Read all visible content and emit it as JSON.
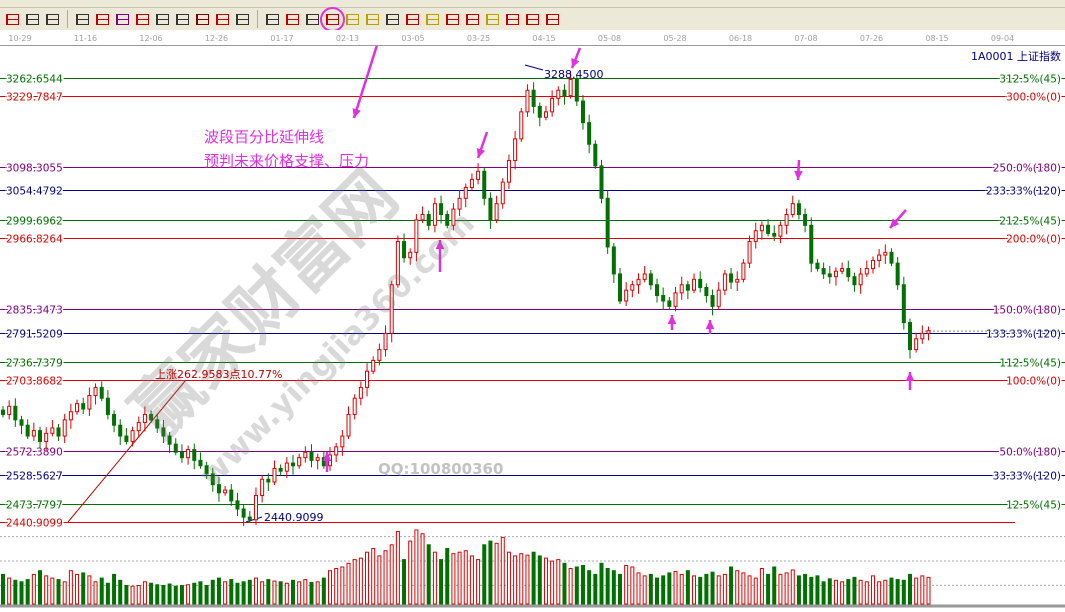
{
  "toolbar": {
    "icons": [
      {
        "name": "win-icon",
        "color": "#c00000"
      },
      {
        "name": "calendar-grid-icon",
        "color": "#333"
      },
      {
        "name": "fit-width-icon",
        "color": "#333"
      },
      {
        "sep": true
      },
      {
        "name": "rect-select-icon",
        "color": "#333"
      },
      {
        "name": "fan-lines-icon",
        "color": "#c00000"
      },
      {
        "name": "gann-box-icon",
        "color": "#800080"
      },
      {
        "name": "gann-fan-icon",
        "color": "#c00000"
      },
      {
        "name": "angle-line-icon",
        "color": "#333"
      },
      {
        "name": "zigzag-icon",
        "color": "#333"
      },
      {
        "name": "grid-icon",
        "color": "#800000"
      },
      {
        "name": "grid-red-icon",
        "color": "#c00000"
      },
      {
        "name": "parallel-lines-icon",
        "color": "#333"
      },
      {
        "sep": true
      },
      {
        "name": "ruler-icon",
        "color": "#333"
      },
      {
        "name": "percent-fan-icon",
        "color": "#c00000"
      },
      {
        "name": "percent-icon",
        "color": "#333"
      },
      {
        "name": "percent-extension-icon",
        "color": "#c00000",
        "active": true
      },
      {
        "name": "circle-target-icon",
        "color": "#b8a000"
      },
      {
        "name": "gold-line-icon",
        "color": "#b8a000"
      },
      {
        "name": "speed-line-icon",
        "color": "#333"
      },
      {
        "name": "wave-icon",
        "color": "#c00000"
      },
      {
        "name": "gold-ratio-icon",
        "color": "#b8a000"
      },
      {
        "name": "j-line-icon",
        "color": "#c00000"
      },
      {
        "name": "fib-line-icon",
        "color": "#c00000"
      },
      {
        "name": "gold-angle-icon",
        "color": "#b8a000"
      },
      {
        "name": "advance-icon",
        "color": "#c00000"
      },
      {
        "name": "win-angle-icon",
        "color": "#c00000"
      },
      {
        "name": "four-angle-icon",
        "color": "#c00000"
      }
    ]
  },
  "symbol": "1A0001  上证指数",
  "annotation": {
    "line1": "波段百分比延伸线",
    "line2": "预判未来价格支撑、压力",
    "rise": "上涨262.9583点10.77%",
    "high_label": "3288.4500",
    "low_label": "2440.9099",
    "qq": "QQ:100800360",
    "accent": "#e030e0"
  },
  "watermark": {
    "brand": "赢家财富网",
    "url": "www.yingjia360.com"
  },
  "chart_data": {
    "type": "candlestick",
    "x_ticks": [
      "10-29",
      "11-16",
      "12-06",
      "12-26",
      "01-17",
      "02-13",
      "03-05",
      "03-25",
      "04-15",
      "05-08",
      "05-28",
      "06-18",
      "07-08",
      "07-26",
      "08-15",
      "09-04"
    ],
    "ylim": [
      2440.9099,
      3262.6544
    ],
    "up_color": "#e00000",
    "down_color": "#007000",
    "levels": [
      {
        "price": "3262.6544",
        "pct": "312.5%(45)",
        "color": "#007000"
      },
      {
        "price": "3229.7847",
        "pct": "300.0%(0)",
        "color": "#e00000"
      },
      {
        "price": "3098.3055",
        "pct": "250.0%(180)",
        "color": "#800080"
      },
      {
        "price": "3054.4792",
        "pct": "233.33%(120)",
        "color": "#000080"
      },
      {
        "price": "2999.6962",
        "pct": "212.5%(45)",
        "color": "#007000"
      },
      {
        "price": "2966.8264",
        "pct": "200.0%(0)",
        "color": "#e00000"
      },
      {
        "price": "2835.3473",
        "pct": "150.0%(180)",
        "color": "#800080"
      },
      {
        "price": "2791.5209",
        "pct": "133.33%(120)",
        "color": "#000080"
      },
      {
        "price": "2736.7379",
        "pct": "112.5%(45)",
        "color": "#007000"
      },
      {
        "price": "2703.8682",
        "pct": "100.0%(0)",
        "color": "#e00000"
      },
      {
        "price": "2572.3890",
        "pct": "50.0%(180)",
        "color": "#800080"
      },
      {
        "price": "2528.5627",
        "pct": "33.33%(120)",
        "color": "#000080"
      },
      {
        "price": "2473.7797",
        "pct": "12.5%(45)",
        "color": "#007000"
      },
      {
        "price": "2440.9099",
        "pct": "",
        "color": "#e00000"
      }
    ],
    "close": [
      2640,
      2655,
      2630,
      2620,
      2600,
      2610,
      2590,
      2605,
      2615,
      2600,
      2630,
      2645,
      2660,
      2650,
      2675,
      2690,
      2670,
      2640,
      2620,
      2600,
      2590,
      2610,
      2625,
      2640,
      2630,
      2615,
      2600,
      2585,
      2570,
      2560,
      2575,
      2555,
      2545,
      2530,
      2510,
      2495,
      2500,
      2480,
      2465,
      2450,
      2445,
      2490,
      2520,
      2515,
      2540,
      2535,
      2550,
      2545,
      2560,
      2570,
      2555,
      2560,
      2545,
      2565,
      2580,
      2600,
      2640,
      2670,
      2690,
      2720,
      2740,
      2760,
      2790,
      2880,
      2960,
      2930,
      2940,
      3000,
      3010,
      2990,
      3030,
      3010,
      2990,
      3020,
      3040,
      3060,
      3075,
      3090,
      3040,
      3000,
      3030,
      3070,
      3110,
      3150,
      3200,
      3240,
      3210,
      3190,
      3200,
      3225,
      3240,
      3230,
      3260,
      3220,
      3180,
      3140,
      3100,
      3040,
      2950,
      2900,
      2850,
      2870,
      2880,
      2890,
      2900,
      2880,
      2860,
      2850,
      2840,
      2865,
      2880,
      2870,
      2890,
      2875,
      2860,
      2840,
      2870,
      2900,
      2885,
      2890,
      2920,
      2960,
      2980,
      2990,
      2975,
      2970,
      2990,
      3010,
      3030,
      3010,
      2990,
      2920,
      2910,
      2900,
      2895,
      2905,
      2910,
      2895,
      2880,
      2900,
      2910,
      2925,
      2935,
      2940,
      2920,
      2880,
      2810,
      2760,
      2780,
      2790,
      2795
    ],
    "volume": [
      40,
      35,
      32,
      30,
      33,
      40,
      45,
      38,
      35,
      33,
      30,
      45,
      40,
      42,
      38,
      30,
      35,
      28,
      40,
      32,
      25,
      24,
      25,
      30,
      28,
      26,
      25,
      27,
      24,
      25,
      26,
      28,
      30,
      25,
      32,
      35,
      30,
      33,
      28,
      30,
      32,
      35,
      30,
      33,
      31,
      30,
      28,
      32,
      30,
      33,
      29,
      30,
      35,
      45,
      48,
      50,
      55,
      60,
      62,
      70,
      75,
      65,
      72,
      80,
      98,
      60,
      85,
      100,
      95,
      80,
      70,
      60,
      75,
      68,
      70,
      72,
      65,
      60,
      80,
      85,
      82,
      90,
      70,
      65,
      68,
      66,
      70,
      65,
      62,
      58,
      60,
      55,
      48,
      50,
      52,
      45,
      40,
      55,
      48,
      45,
      40,
      52,
      50,
      42,
      38,
      40,
      35,
      38,
      42,
      44,
      40,
      45,
      38,
      36,
      40,
      43,
      38,
      40,
      50,
      45,
      42,
      38,
      35,
      48,
      40,
      50,
      40,
      42,
      46,
      38,
      40,
      36,
      38,
      30,
      34,
      32,
      30,
      33,
      36,
      32,
      30,
      38,
      30,
      32,
      35,
      33,
      32,
      40,
      35,
      38,
      36
    ]
  }
}
